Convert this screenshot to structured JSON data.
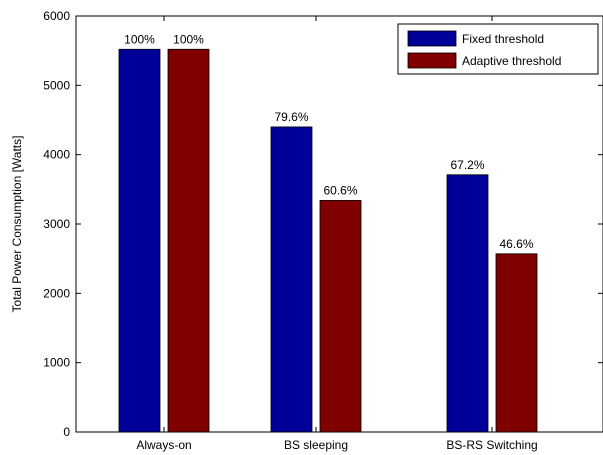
{
  "chart_data": {
    "type": "bar",
    "title": "",
    "xlabel": "",
    "ylabel": "Total Power Consumption [Watts]",
    "ylim": [
      0,
      6000
    ],
    "yticks": [
      0,
      1000,
      2000,
      3000,
      4000,
      5000,
      6000
    ],
    "categories": [
      "Always-on",
      "BS sleeping",
      "BS-RS Switching"
    ],
    "series": [
      {
        "name": "Fixed threshold",
        "color": "#000099",
        "values": [
          5520,
          4400,
          3710
        ],
        "labels": [
          "100%",
          "79.6%",
          "67.2%"
        ]
      },
      {
        "name": "Adaptive threshold",
        "color": "#800000",
        "values": [
          5520,
          3340,
          2570
        ],
        "labels": [
          "100%",
          "60.6%",
          "46.6%"
        ]
      }
    ],
    "legend_position": "top-right",
    "grid": false
  }
}
